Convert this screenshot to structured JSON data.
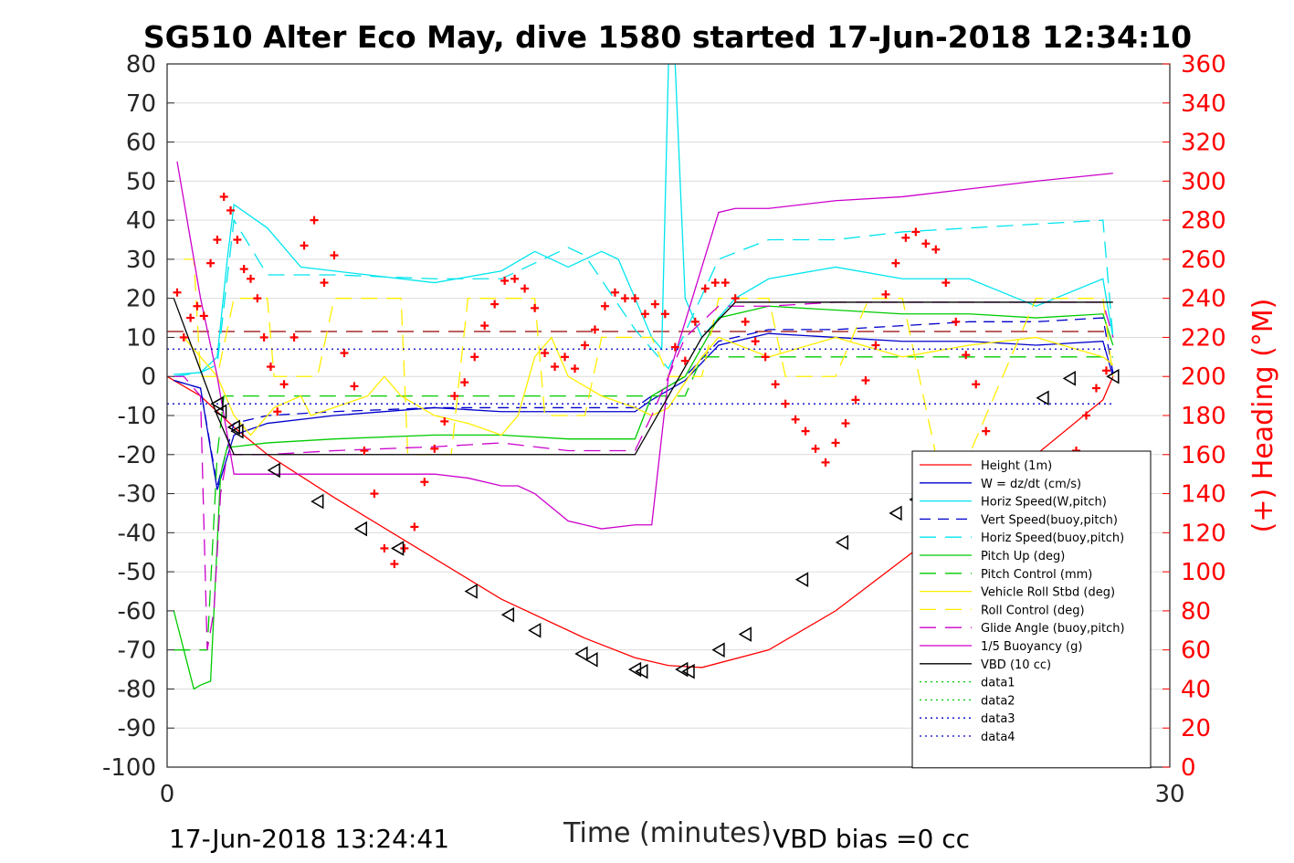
{
  "chart_data": {
    "type": "line",
    "title": "SG510 Alter Eco May, dive 1580 started 17-Jun-2018 12:34:10",
    "xlabel": "Time (minutes)",
    "ylabel": "",
    "y2label": "(+) Heading (°M)",
    "xlim": [
      0,
      30
    ],
    "ylim": [
      -100,
      80
    ],
    "y2lim": [
      0,
      360
    ],
    "xticks": [
      "0",
      "30"
    ],
    "yticks": [
      "80",
      "70",
      "60",
      "50",
      "40",
      "30",
      "20",
      "10",
      "0",
      "-10",
      "-20",
      "-30",
      "-40",
      "-50",
      "-60",
      "-70",
      "-80",
      "-90",
      "-100"
    ],
    "y2ticks": [
      "360",
      "340",
      "320",
      "300",
      "280",
      "260",
      "240",
      "220",
      "200",
      "180",
      "160",
      "140",
      "120",
      "100",
      "80",
      "60",
      "40",
      "20",
      "0"
    ],
    "grid": true,
    "legend_position": "bottom-right",
    "footer_left": "17-Jun-2018 13:24:41",
    "footer_right": "VBD bias =0 cc",
    "colors": {
      "height": "#ff0000",
      "w": "#0000cc",
      "horiz_speed_w": "#00e5ee",
      "vert_speed_buoy": "#0000cc",
      "horiz_speed_buoy": "#00e5ee",
      "pitch_up": "#00cc00",
      "pitch_control": "#00cc00",
      "vehicle_roll": "#ffee00",
      "roll_control": "#ffee00",
      "glide_angle": "#cc00cc",
      "buoyancy": "#cc00cc",
      "vbd": "#000000",
      "data1": "#00cc00",
      "data2": "#00cc00",
      "data3": "#0000cc",
      "data4": "#0000cc",
      "ref_line": "#990000"
    },
    "series": [
      {
        "name": "Height (1m)",
        "key": "height",
        "dash": "",
        "x": [
          0,
          1.0,
          1.5,
          2.0,
          3.0,
          5.0,
          7.5,
          10.0,
          12.5,
          14.0,
          15.0,
          16.0,
          18.0,
          20.0,
          22.0,
          24.0,
          26.0,
          28.0,
          28.3
        ],
        "y": [
          0,
          -5,
          -9,
          -13,
          -20,
          -31,
          -44,
          -57,
          -67,
          -72,
          -74,
          -74.5,
          -70,
          -60,
          -47,
          -34,
          -20,
          -6,
          0
        ]
      },
      {
        "name": "W = dz/dt (cm/s)",
        "key": "w",
        "dash": "",
        "x": [
          0.2,
          1.0,
          1.5,
          2.0,
          3.0,
          5.0,
          8.0,
          10.0,
          12.0,
          14.0,
          14.5,
          15.5,
          16.5,
          18.0,
          20.0,
          22.0,
          24.0,
          26.0,
          28.0,
          28.3
        ],
        "y": [
          -1,
          -3,
          -29,
          -15,
          -12,
          -10,
          -8,
          -9,
          -9,
          -9,
          -6,
          -1,
          8,
          11,
          10,
          9,
          9,
          8,
          9,
          0
        ]
      },
      {
        "name": "Horiz Speed(W,pitch)",
        "key": "horiz_speed_w",
        "dash": "",
        "x": [
          0.2,
          1.0,
          1.5,
          1.8,
          2.0,
          3.0,
          4.0,
          6.0,
          8.0,
          10.0,
          11.0,
          12.0,
          13.0,
          13.5,
          14.0,
          14.5,
          14.8,
          15.0,
          15.2,
          15.5,
          16.0,
          17.0,
          18.0,
          20.0,
          22.0,
          24.0,
          26.0,
          28.0,
          28.3
        ],
        "y": [
          0.5,
          1,
          5,
          30,
          44,
          38,
          28,
          26,
          24,
          27,
          32,
          28,
          32,
          30,
          20,
          10,
          7,
          80,
          80,
          20,
          10,
          20,
          25,
          28,
          25,
          25,
          18,
          25,
          10
        ]
      },
      {
        "name": "Vert Speed(buoy,pitch)",
        "key": "vert_speed_buoy",
        "dash": "12,8",
        "x": [
          0.2,
          1.0,
          1.5,
          2.0,
          3.0,
          5.0,
          8.0,
          10.0,
          12.0,
          14.0,
          14.5,
          15.5,
          16.5,
          18.0,
          20.0,
          22.0,
          24.0,
          26.0,
          28.0,
          28.3
        ],
        "y": [
          -1,
          -3,
          -28,
          -12,
          -10,
          -9,
          -8,
          -8,
          -8,
          -8,
          -5,
          0,
          9,
          12,
          12,
          13,
          14,
          14,
          15,
          1
        ]
      },
      {
        "name": "Horiz Speed(buoy,pitch)",
        "key": "horiz_speed_buoy",
        "dash": "18,10",
        "x": [
          0.2,
          1.0,
          1.5,
          2.0,
          3.0,
          5.0,
          8.0,
          10.0,
          12.0,
          12.5,
          14.0,
          15.0,
          16.5,
          18.0,
          20.0,
          22.0,
          24.0,
          26.0,
          28.0,
          28.3
        ],
        "y": [
          0,
          1,
          3,
          40,
          26,
          26,
          25,
          25,
          33,
          31,
          12,
          2,
          30,
          35,
          35,
          37,
          38,
          39,
          40,
          10
        ]
      },
      {
        "name": "Pitch Up (deg)",
        "key": "pitch_up",
        "dash": "",
        "x": [
          0.2,
          0.5,
          0.8,
          1.0,
          1.3,
          1.6,
          1.8,
          2.0,
          3.0,
          5.0,
          8.0,
          10.0,
          12.0,
          14.0,
          14.5,
          15.5,
          16.5,
          18.0,
          20.0,
          22.0,
          24.0,
          26.0,
          28.0,
          28.3
        ],
        "y": [
          -60,
          -70,
          -80,
          -79,
          -78,
          -25,
          -18,
          -18,
          -17,
          -16,
          -15,
          -15,
          -16,
          -16,
          -5,
          0,
          15,
          18,
          17,
          16,
          16,
          15,
          16,
          8
        ]
      },
      {
        "name": "Pitch Control (mm)",
        "key": "pitch_control",
        "dash": "18,10",
        "x": [
          0.2,
          0.5,
          1.2,
          1.5,
          1.7,
          2.0,
          10.0,
          14.5,
          15.5,
          16.0,
          28.3
        ],
        "y": [
          -70,
          -70,
          -70,
          -20,
          -5,
          -5,
          -5,
          -5,
          -5,
          5,
          5
        ]
      },
      {
        "name": "Vehicle Roll Stbd (deg)",
        "key": "vehicle_roll",
        "dash": "",
        "x": [
          0.5,
          1.0,
          1.5,
          2.0,
          2.5,
          3.0,
          3.2,
          4.0,
          4.3,
          6.0,
          6.5,
          7.0,
          8.0,
          9.0,
          10.0,
          10.5,
          11.0,
          11.5,
          12.0,
          13.0,
          14.0,
          14.5,
          15.0,
          16.0,
          16.5,
          18.0,
          20.0,
          22.0,
          24.0,
          26.0,
          28.0,
          28.3
        ],
        "y": [
          10,
          5,
          0,
          -10,
          -15,
          -10,
          -8,
          -5,
          -10,
          -5,
          0,
          -5,
          -10,
          -12,
          -15,
          -10,
          5,
          10,
          0,
          -5,
          -8,
          -10,
          -8,
          5,
          10,
          5,
          10,
          5,
          8,
          10,
          5,
          3
        ]
      },
      {
        "name": "Roll Control (deg)",
        "key": "roll_control",
        "dash": "18,10",
        "x": [
          0.5,
          0.8,
          1.0,
          1.5,
          2.0,
          3.0,
          3.2,
          4.5,
          5.0,
          7.0,
          7.2,
          8.5,
          9.0,
          11.0,
          11.3,
          12.5,
          13.0,
          14.5,
          15.0,
          16.0,
          16.5,
          18.0,
          18.5,
          20.0,
          21.0,
          22.0,
          23.0,
          24.0,
          26.0,
          28.0,
          28.3
        ],
        "y": [
          30,
          30,
          0,
          0,
          20,
          20,
          0,
          0,
          20,
          20,
          -20,
          -20,
          20,
          20,
          -10,
          -10,
          10,
          10,
          0,
          0,
          20,
          20,
          0,
          0,
          20,
          20,
          -20,
          -20,
          20,
          20,
          0
        ]
      },
      {
        "name": "Glide Angle (buoy,pitch)",
        "key": "glide_angle",
        "dash": "18,10",
        "x": [
          0.2,
          0.5,
          1.0,
          1.2,
          1.4,
          1.6,
          1.8,
          2.0,
          3.0,
          5.0,
          8.0,
          10.0,
          12.0,
          14.0,
          14.5,
          15.5,
          16.5,
          18.0,
          20.0,
          22.0,
          24.0,
          26.0,
          28.0,
          28.3
        ],
        "y": [
          0,
          0,
          -5,
          -70,
          -60,
          -30,
          -20,
          -20,
          -20,
          -19,
          -18,
          -17,
          -19,
          -19,
          -10,
          10,
          18,
          18,
          19,
          19,
          19,
          19,
          19,
          10
        ]
      },
      {
        "name": "1/5 Buoyancy (g)",
        "key": "buoyancy",
        "dash": "",
        "x": [
          0.3,
          1.0,
          1.5,
          2.0,
          3.0,
          5.0,
          8.0,
          9.0,
          10.0,
          10.5,
          11.0,
          12.0,
          13.0,
          14.0,
          14.5,
          15.0,
          16.5,
          17.0,
          18.0,
          20.0,
          22.0,
          24.0,
          26.0,
          28.3
        ],
        "y": [
          55,
          20,
          0,
          -25,
          -25,
          -25,
          -25,
          -26,
          -28,
          -28,
          -30,
          -37,
          -39,
          -38,
          -38,
          0,
          42,
          43,
          43,
          45,
          46,
          48,
          50,
          52
        ]
      },
      {
        "name": "VBD (10 cc)",
        "key": "vbd",
        "dash": "",
        "x": [
          0.2,
          1.5,
          2.0,
          3.0,
          5.0,
          8.0,
          10.0,
          12.0,
          13.0,
          14.0,
          16.0,
          17.0,
          20.0,
          24.0,
          28.3
        ],
        "y": [
          20,
          -10,
          -20,
          -20,
          -20,
          -20,
          -20,
          -20,
          -20,
          -20,
          10,
          19,
          19,
          19,
          19
        ]
      },
      {
        "name": "data1",
        "key": "data1",
        "dash": "2,4",
        "x": [],
        "y": []
      },
      {
        "name": "data2",
        "key": "data2",
        "dash": "2,4",
        "x": [],
        "y": []
      },
      {
        "name": "data3",
        "key": "data3",
        "dash": "2,4",
        "x": [
          0,
          28.3
        ],
        "y": [
          7,
          7
        ]
      },
      {
        "name": "data4",
        "key": "data4",
        "dash": "2,4",
        "x": [
          0,
          28.3
        ],
        "y": [
          -7,
          -7
        ]
      }
    ],
    "reference_line": {
      "key": "ref_line",
      "dash": "18,10",
      "x": [
        0,
        28.3
      ],
      "y": [
        11.5,
        11.5
      ]
    },
    "heading": {
      "axis": "right",
      "marker": "+",
      "color": "#ff0000",
      "x": [
        0.3,
        0.5,
        0.7,
        0.9,
        1.1,
        1.3,
        1.5,
        1.7,
        1.9,
        2.1,
        2.3,
        2.5,
        2.7,
        2.9,
        3.1,
        3.3,
        3.5,
        3.8,
        4.1,
        4.4,
        4.7,
        5.0,
        5.3,
        5.6,
        5.9,
        6.2,
        6.5,
        6.8,
        7.1,
        7.4,
        7.7,
        8.0,
        8.3,
        8.6,
        8.9,
        9.2,
        9.5,
        9.8,
        10.1,
        10.4,
        10.7,
        11.0,
        11.3,
        11.6,
        11.9,
        12.2,
        12.5,
        12.8,
        13.1,
        13.4,
        13.7,
        14.0,
        14.3,
        14.6,
        14.9,
        15.2,
        15.5,
        15.8,
        16.1,
        16.4,
        16.7,
        17.0,
        17.3,
        17.6,
        17.9,
        18.2,
        18.5,
        18.8,
        19.1,
        19.4,
        19.7,
        20.0,
        20.3,
        20.6,
        20.9,
        21.2,
        21.5,
        21.8,
        22.1,
        22.4,
        22.7,
        23.0,
        23.3,
        23.6,
        23.9,
        24.2,
        24.5,
        24.8,
        25.1,
        25.4,
        25.7,
        26.0,
        26.3,
        26.6,
        26.9,
        27.2,
        27.5,
        27.8,
        28.1
      ],
      "y": [
        243,
        220,
        230,
        236,
        231,
        258,
        270,
        292,
        285,
        270,
        255,
        250,
        240,
        220,
        205,
        182,
        196,
        220,
        267,
        280,
        248,
        262,
        212,
        195,
        162,
        140,
        112,
        104,
        112,
        123,
        146,
        163,
        177,
        190,
        197,
        210,
        226,
        237,
        249,
        250,
        245,
        235,
        212,
        205,
        210,
        204,
        216,
        224,
        236,
        243,
        240,
        240,
        232,
        237,
        232,
        215,
        208,
        228,
        245,
        248,
        248,
        240,
        228,
        218,
        210,
        196,
        186,
        178,
        172,
        163,
        156,
        166,
        176,
        188,
        198,
        216,
        242,
        258,
        271,
        274,
        268,
        265,
        248,
        228,
        211,
        196,
        172,
        158,
        150,
        123,
        100,
        92,
        110,
        128,
        150,
        162,
        180,
        194,
        203
      ]
    },
    "markers": {
      "shape": "triangle-left",
      "x": [
        1.5,
        1.6,
        2.0,
        2.1,
        3.2,
        4.5,
        5.8,
        6.9,
        9.1,
        10.2,
        11.0,
        12.4,
        12.7,
        14.0,
        14.2,
        15.4,
        15.6,
        16.5,
        17.3,
        19.0,
        20.2,
        21.8,
        22.4,
        23.3,
        26.2,
        27.0,
        28.3
      ],
      "y": [
        -7,
        -9,
        -13,
        -14,
        -24,
        -32,
        -39,
        -44,
        -55,
        -61,
        -65,
        -71,
        -72.5,
        -75,
        -75.5,
        -75,
        -75.5,
        -70,
        -66,
        -52,
        -42.5,
        -35,
        -31.5,
        -25,
        -5.5,
        -0.5,
        0
      ]
    }
  }
}
